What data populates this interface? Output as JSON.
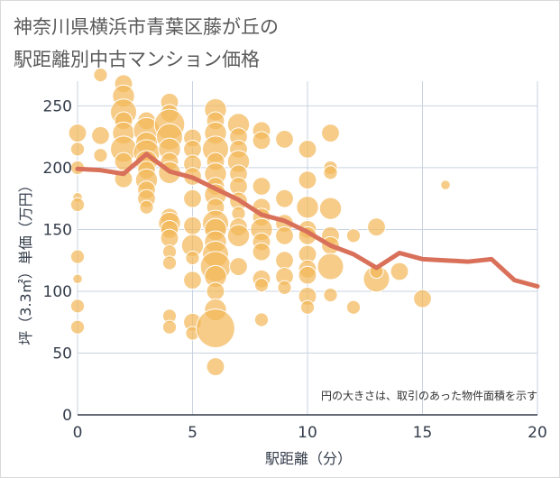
{
  "title_line1": "神奈川県横浜市青葉区藤が丘の",
  "title_line2": "駅距離別中古マンション価格",
  "colors": {
    "bubble": "#f2b85a",
    "bubble_stroke": "#ffffff",
    "line": "#d9705a",
    "grid": "#c9d3e0",
    "axis": "#333c4a"
  },
  "chart_data": {
    "type": "scatter",
    "xlabel": "駅距離（分）",
    "ylabel": "坪（3.3㎡）単価（万円）",
    "xlim": [
      0,
      20
    ],
    "ylim": [
      0,
      270
    ],
    "xticks": [
      "0",
      "5",
      "10",
      "15",
      "20"
    ],
    "yticks": [
      "0",
      "50",
      "100",
      "150",
      "200",
      "250"
    ],
    "grid": true,
    "note": "円の大きさは、取引のあった物件面積を示す",
    "line_series": {
      "x": [
        0,
        1,
        2,
        3,
        4,
        5,
        6,
        7,
        8,
        9,
        10,
        11,
        12,
        13,
        14,
        15,
        16,
        17,
        18,
        19,
        20
      ],
      "y": [
        199,
        198,
        195,
        211,
        197,
        192,
        183,
        174,
        162,
        157,
        148,
        137,
        130,
        119,
        131,
        126,
        125,
        124,
        126,
        109,
        104
      ]
    },
    "bubbles": [
      {
        "x": 0,
        "y": 228,
        "s": 3
      },
      {
        "x": 0,
        "y": 215,
        "s": 2
      },
      {
        "x": 0,
        "y": 200,
        "s": 2
      },
      {
        "x": 0,
        "y": 176,
        "s": 1
      },
      {
        "x": 0,
        "y": 170,
        "s": 2
      },
      {
        "x": 0,
        "y": 128,
        "s": 2
      },
      {
        "x": 0,
        "y": 110,
        "s": 1
      },
      {
        "x": 0,
        "y": 88,
        "s": 2
      },
      {
        "x": 0,
        "y": 71,
        "s": 2
      },
      {
        "x": 1,
        "y": 275,
        "s": 2
      },
      {
        "x": 1,
        "y": 226,
        "s": 3
      },
      {
        "x": 1,
        "y": 210,
        "s": 2
      },
      {
        "x": 2,
        "y": 268,
        "s": 3
      },
      {
        "x": 2,
        "y": 258,
        "s": 4
      },
      {
        "x": 2,
        "y": 245,
        "s": 5
      },
      {
        "x": 2,
        "y": 238,
        "s": 3
      },
      {
        "x": 2,
        "y": 228,
        "s": 4
      },
      {
        "x": 2,
        "y": 215,
        "s": 5
      },
      {
        "x": 2,
        "y": 205,
        "s": 3
      },
      {
        "x": 2,
        "y": 191,
        "s": 3
      },
      {
        "x": 3,
        "y": 238,
        "s": 3
      },
      {
        "x": 3,
        "y": 230,
        "s": 5
      },
      {
        "x": 3,
        "y": 220,
        "s": 4
      },
      {
        "x": 3,
        "y": 212,
        "s": 5
      },
      {
        "x": 3,
        "y": 205,
        "s": 4
      },
      {
        "x": 3,
        "y": 198,
        "s": 3
      },
      {
        "x": 3,
        "y": 190,
        "s": 4
      },
      {
        "x": 3,
        "y": 182,
        "s": 3
      },
      {
        "x": 3,
        "y": 175,
        "s": 3
      },
      {
        "x": 3,
        "y": 168,
        "s": 2
      },
      {
        "x": 4,
        "y": 253,
        "s": 3
      },
      {
        "x": 4,
        "y": 244,
        "s": 3
      },
      {
        "x": 4,
        "y": 235,
        "s": 6
      },
      {
        "x": 4,
        "y": 225,
        "s": 5
      },
      {
        "x": 4,
        "y": 215,
        "s": 4
      },
      {
        "x": 4,
        "y": 205,
        "s": 3
      },
      {
        "x": 4,
        "y": 196,
        "s": 4
      },
      {
        "x": 4,
        "y": 160,
        "s": 3
      },
      {
        "x": 4,
        "y": 155,
        "s": 4
      },
      {
        "x": 4,
        "y": 150,
        "s": 3
      },
      {
        "x": 4,
        "y": 143,
        "s": 3
      },
      {
        "x": 4,
        "y": 132,
        "s": 2
      },
      {
        "x": 4,
        "y": 123,
        "s": 2
      },
      {
        "x": 4,
        "y": 80,
        "s": 2
      },
      {
        "x": 4,
        "y": 71,
        "s": 2
      },
      {
        "x": 5,
        "y": 224,
        "s": 3
      },
      {
        "x": 5,
        "y": 215,
        "s": 3
      },
      {
        "x": 5,
        "y": 203,
        "s": 3
      },
      {
        "x": 5,
        "y": 193,
        "s": 3
      },
      {
        "x": 5,
        "y": 175,
        "s": 3
      },
      {
        "x": 5,
        "y": 153,
        "s": 3
      },
      {
        "x": 5,
        "y": 137,
        "s": 4
      },
      {
        "x": 5,
        "y": 127,
        "s": 2
      },
      {
        "x": 5,
        "y": 109,
        "s": 3
      },
      {
        "x": 5,
        "y": 75,
        "s": 3
      },
      {
        "x": 5,
        "y": 66,
        "s": 2
      },
      {
        "x": 6,
        "y": 247,
        "s": 4
      },
      {
        "x": 6,
        "y": 238,
        "s": 3
      },
      {
        "x": 6,
        "y": 228,
        "s": 4
      },
      {
        "x": 6,
        "y": 215,
        "s": 5
      },
      {
        "x": 6,
        "y": 205,
        "s": 3
      },
      {
        "x": 6,
        "y": 195,
        "s": 4
      },
      {
        "x": 6,
        "y": 185,
        "s": 3
      },
      {
        "x": 6,
        "y": 178,
        "s": 4
      },
      {
        "x": 6,
        "y": 168,
        "s": 3
      },
      {
        "x": 6,
        "y": 155,
        "s": 5
      },
      {
        "x": 6,
        "y": 150,
        "s": 4
      },
      {
        "x": 6,
        "y": 140,
        "s": 4
      },
      {
        "x": 6,
        "y": 130,
        "s": 5
      },
      {
        "x": 6,
        "y": 120,
        "s": 6
      },
      {
        "x": 6,
        "y": 112,
        "s": 4
      },
      {
        "x": 6,
        "y": 100,
        "s": 3
      },
      {
        "x": 6,
        "y": 85,
        "s": 4
      },
      {
        "x": 6,
        "y": 70,
        "s": 8
      },
      {
        "x": 6,
        "y": 39,
        "s": 3
      },
      {
        "x": 7,
        "y": 235,
        "s": 4
      },
      {
        "x": 7,
        "y": 225,
        "s": 3
      },
      {
        "x": 7,
        "y": 215,
        "s": 3
      },
      {
        "x": 7,
        "y": 205,
        "s": 4
      },
      {
        "x": 7,
        "y": 195,
        "s": 3
      },
      {
        "x": 7,
        "y": 185,
        "s": 3
      },
      {
        "x": 7,
        "y": 173,
        "s": 3
      },
      {
        "x": 7,
        "y": 163,
        "s": 2
      },
      {
        "x": 7,
        "y": 152,
        "s": 3
      },
      {
        "x": 7,
        "y": 145,
        "s": 4
      },
      {
        "x": 7,
        "y": 120,
        "s": 3
      },
      {
        "x": 8,
        "y": 230,
        "s": 3
      },
      {
        "x": 8,
        "y": 222,
        "s": 3
      },
      {
        "x": 8,
        "y": 185,
        "s": 3
      },
      {
        "x": 8,
        "y": 168,
        "s": 3
      },
      {
        "x": 8,
        "y": 160,
        "s": 3
      },
      {
        "x": 8,
        "y": 150,
        "s": 4
      },
      {
        "x": 8,
        "y": 140,
        "s": 3
      },
      {
        "x": 8,
        "y": 132,
        "s": 3
      },
      {
        "x": 8,
        "y": 110,
        "s": 3
      },
      {
        "x": 8,
        "y": 105,
        "s": 2
      },
      {
        "x": 8,
        "y": 77,
        "s": 2
      },
      {
        "x": 9,
        "y": 223,
        "s": 3
      },
      {
        "x": 9,
        "y": 175,
        "s": 3
      },
      {
        "x": 9,
        "y": 155,
        "s": 3
      },
      {
        "x": 9,
        "y": 145,
        "s": 3
      },
      {
        "x": 9,
        "y": 125,
        "s": 3
      },
      {
        "x": 9,
        "y": 112,
        "s": 3
      },
      {
        "x": 9,
        "y": 103,
        "s": 2
      },
      {
        "x": 10,
        "y": 215,
        "s": 3
      },
      {
        "x": 10,
        "y": 190,
        "s": 3
      },
      {
        "x": 10,
        "y": 168,
        "s": 4
      },
      {
        "x": 10,
        "y": 150,
        "s": 3
      },
      {
        "x": 10,
        "y": 145,
        "s": 3
      },
      {
        "x": 10,
        "y": 130,
        "s": 3
      },
      {
        "x": 10,
        "y": 118,
        "s": 3
      },
      {
        "x": 10,
        "y": 113,
        "s": 3
      },
      {
        "x": 10,
        "y": 96,
        "s": 3
      },
      {
        "x": 10,
        "y": 87,
        "s": 2
      },
      {
        "x": 11,
        "y": 228,
        "s": 3
      },
      {
        "x": 11,
        "y": 200,
        "s": 2
      },
      {
        "x": 11,
        "y": 196,
        "s": 2
      },
      {
        "x": 11,
        "y": 167,
        "s": 4
      },
      {
        "x": 11,
        "y": 145,
        "s": 3
      },
      {
        "x": 11,
        "y": 137,
        "s": 3
      },
      {
        "x": 11,
        "y": 120,
        "s": 5
      },
      {
        "x": 11,
        "y": 97,
        "s": 2
      },
      {
        "x": 12,
        "y": 145,
        "s": 2
      },
      {
        "x": 12,
        "y": 87,
        "s": 2
      },
      {
        "x": 13,
        "y": 152,
        "s": 3
      },
      {
        "x": 13,
        "y": 110,
        "s": 5
      },
      {
        "x": 13,
        "y": 116,
        "s": 2
      },
      {
        "x": 14,
        "y": 116,
        "s": 3
      },
      {
        "x": 15,
        "y": 94,
        "s": 3
      },
      {
        "x": 16,
        "y": 186,
        "s": 1
      }
    ]
  }
}
